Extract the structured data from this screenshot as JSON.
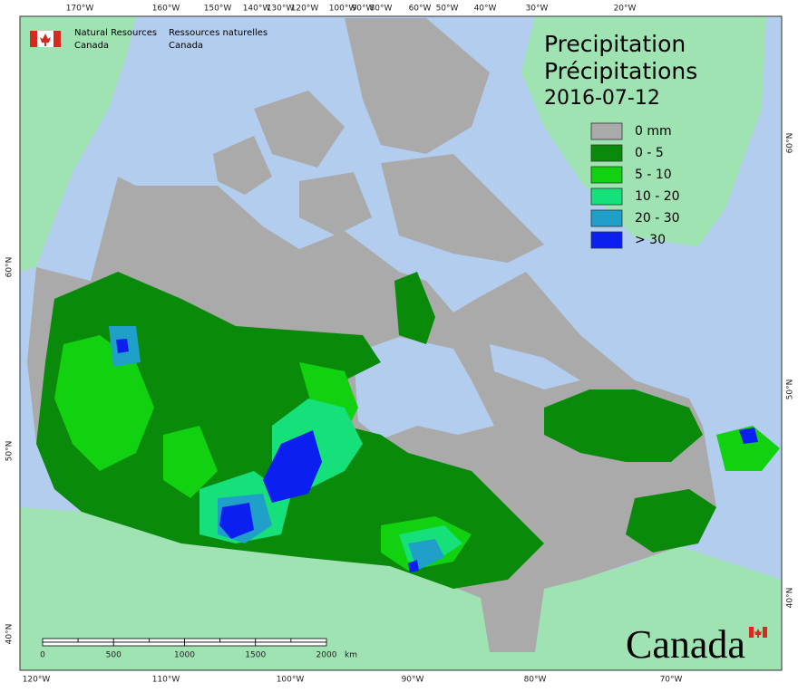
{
  "header": {
    "department_en": [
      "Natural Resources",
      "Canada"
    ],
    "department_fr": [
      "Ressources naturelles",
      "Canada"
    ]
  },
  "title": {
    "lines": [
      "Precipitation",
      "Précipitations"
    ],
    "date": "2016-07-12"
  },
  "legend": [
    {
      "label": "0 mm",
      "color": "#aaaaaa"
    },
    {
      "label": "0 - 5",
      "color": "#0a8a0a"
    },
    {
      "label": "5 - 10",
      "color": "#11d111"
    },
    {
      "label": "10 - 20",
      "color": "#16e07a"
    },
    {
      "label": "20 - 30",
      "color": "#1fa0c8"
    },
    {
      "label": "> 30",
      "color": "#0a1ff0"
    }
  ],
  "graticule": {
    "top": [
      "170°W",
      "160°W",
      "150°W",
      "140°W",
      "130°W",
      "120°W",
      "100°W",
      "90°W",
      "80°W",
      "60°W",
      "50°W",
      "40°W",
      "30°W",
      "20°W"
    ],
    "bottom": [
      "120°W",
      "110°W",
      "100°W",
      "90°W",
      "80°W",
      "70°W"
    ],
    "left": [
      "60°N",
      "50°N",
      "40°N"
    ],
    "right": [
      "60°N",
      "50°N",
      "40°N"
    ]
  },
  "scale_bar": {
    "labels": [
      "0",
      "500",
      "1000",
      "1500",
      "2000"
    ],
    "unit": "km"
  },
  "wordmark": "Canada"
}
